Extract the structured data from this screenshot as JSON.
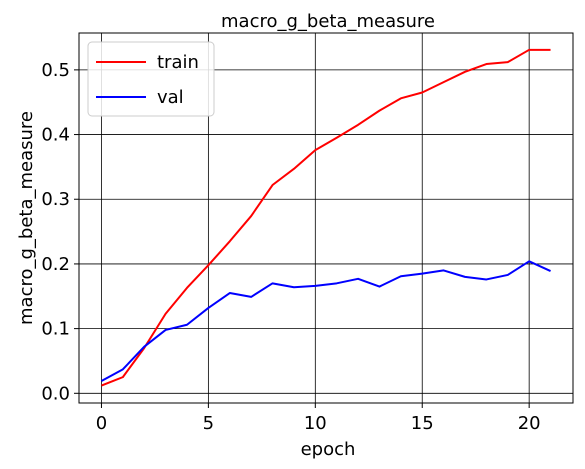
{
  "chart_data": {
    "type": "line",
    "title": "macro_g_beta_measure",
    "xlabel": "epoch",
    "ylabel": "macro_g_beta_measure",
    "xlim": [
      -1.05,
      22.05
    ],
    "ylim": [
      -0.015,
      0.557
    ],
    "xticks": [
      0,
      5,
      10,
      15,
      20
    ],
    "yticks": [
      0.0,
      0.1,
      0.2,
      0.3,
      0.4,
      0.5
    ],
    "xtick_labels": [
      "0",
      "5",
      "10",
      "15",
      "20"
    ],
    "ytick_labels": [
      "0.0",
      "0.1",
      "0.2",
      "0.3",
      "0.4",
      "0.5"
    ],
    "grid": true,
    "legend_placement": "upper-left",
    "x": [
      0,
      1,
      2,
      3,
      4,
      5,
      6,
      7,
      8,
      9,
      10,
      11,
      12,
      13,
      14,
      15,
      16,
      17,
      18,
      19,
      20,
      21
    ],
    "series": [
      {
        "name": "train",
        "color": "#ff0000",
        "values": [
          0.012,
          0.025,
          0.07,
          0.123,
          0.163,
          0.198,
          0.235,
          0.274,
          0.322,
          0.347,
          0.376,
          0.395,
          0.415,
          0.437,
          0.456,
          0.465,
          0.481,
          0.497,
          0.509,
          0.512,
          0.531,
          0.531
        ]
      },
      {
        "name": "val",
        "color": "#0000ff",
        "values": [
          0.019,
          0.037,
          0.072,
          0.098,
          0.106,
          0.132,
          0.155,
          0.149,
          0.17,
          0.164,
          0.166,
          0.17,
          0.177,
          0.165,
          0.181,
          0.185,
          0.19,
          0.18,
          0.176,
          0.183,
          0.204,
          0.189
        ]
      }
    ]
  }
}
